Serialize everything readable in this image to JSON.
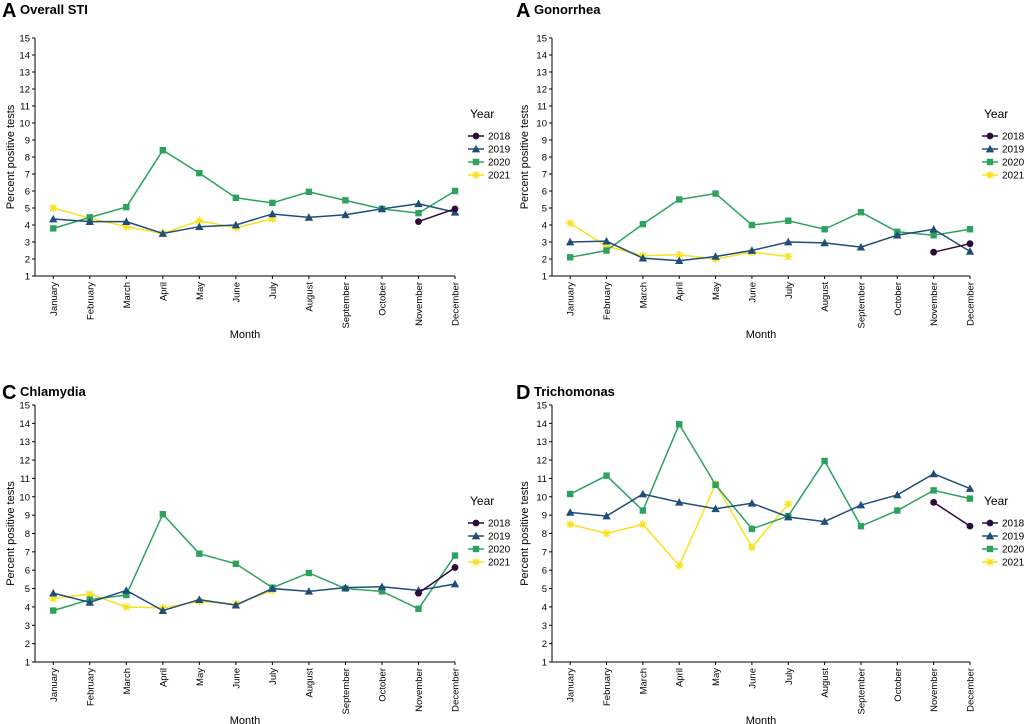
{
  "chart_data": [
    {
      "type": "line",
      "letter": "A",
      "title": "Overall STI",
      "xlabel": "Month",
      "ylabel": "Percent positive tests",
      "ylim": [
        1,
        15
      ],
      "yticks": [
        1,
        2,
        3,
        4,
        5,
        6,
        7,
        8,
        9,
        10,
        11,
        12,
        13,
        14,
        15
      ],
      "categories": [
        "January",
        "February",
        "March",
        "April",
        "May",
        "June",
        "July",
        "August",
        "September",
        "October",
        "November",
        "December"
      ],
      "legend_title": "Year",
      "series": [
        {
          "name": "2018",
          "values": [
            null,
            null,
            null,
            null,
            null,
            null,
            null,
            null,
            null,
            null,
            4.2,
            4.95
          ]
        },
        {
          "name": "2019",
          "values": [
            4.35,
            4.2,
            4.2,
            3.5,
            3.9,
            4.0,
            4.65,
            4.45,
            4.6,
            4.95,
            5.25,
            4.75
          ]
        },
        {
          "name": "2020",
          "values": [
            3.8,
            4.45,
            5.05,
            8.4,
            7.05,
            5.6,
            5.3,
            5.95,
            5.45,
            4.95,
            4.7,
            6.0
          ]
        },
        {
          "name": "2021",
          "values": [
            5.0,
            4.4,
            3.9,
            3.5,
            4.25,
            3.85,
            4.35,
            null,
            null,
            null,
            null,
            null
          ]
        }
      ]
    },
    {
      "type": "line",
      "letter": "A",
      "title": "Gonorrhea",
      "xlabel": "Month",
      "ylabel": "Percent positive tests",
      "ylim": [
        1,
        15
      ],
      "yticks": [
        1,
        2,
        3,
        4,
        5,
        6,
        7,
        8,
        9,
        10,
        11,
        12,
        13,
        14,
        15
      ],
      "categories": [
        "January",
        "February",
        "March",
        "April",
        "May",
        "June",
        "July",
        "August",
        "September",
        "October",
        "November",
        "December"
      ],
      "legend_title": "Year",
      "series": [
        {
          "name": "2018",
          "values": [
            null,
            null,
            null,
            null,
            null,
            null,
            null,
            null,
            null,
            null,
            2.4,
            2.9
          ]
        },
        {
          "name": "2019",
          "values": [
            3.0,
            3.05,
            2.05,
            1.9,
            2.15,
            2.5,
            3.0,
            2.95,
            2.7,
            3.4,
            3.75,
            2.45
          ]
        },
        {
          "name": "2020",
          "values": [
            2.1,
            2.5,
            4.05,
            5.5,
            5.85,
            4.0,
            4.25,
            3.75,
            4.75,
            3.6,
            3.4,
            3.75
          ]
        },
        {
          "name": "2021",
          "values": [
            4.1,
            2.75,
            2.2,
            2.25,
            2.0,
            2.4,
            2.15,
            null,
            null,
            null,
            null,
            null
          ]
        }
      ]
    },
    {
      "type": "line",
      "letter": "C",
      "title": "Chlamydia",
      "xlabel": "Month",
      "ylabel": "Percent positive tests",
      "ylim": [
        1,
        15
      ],
      "yticks": [
        1,
        2,
        3,
        4,
        5,
        6,
        7,
        8,
        9,
        10,
        11,
        12,
        13,
        14,
        15
      ],
      "categories": [
        "January",
        "February",
        "March",
        "April",
        "May",
        "June",
        "July",
        "August",
        "September",
        "October",
        "November",
        "December"
      ],
      "legend_title": "Year",
      "series": [
        {
          "name": "2018",
          "values": [
            null,
            null,
            null,
            null,
            null,
            null,
            null,
            null,
            null,
            null,
            4.75,
            6.15
          ]
        },
        {
          "name": "2019",
          "values": [
            4.75,
            4.25,
            4.9,
            3.8,
            4.4,
            4.1,
            5.0,
            4.85,
            5.05,
            5.1,
            4.9,
            5.25
          ]
        },
        {
          "name": "2020",
          "values": [
            3.8,
            4.4,
            4.65,
            9.05,
            6.9,
            6.35,
            5.05,
            5.85,
            5.0,
            4.85,
            3.9,
            6.8
          ]
        },
        {
          "name": "2021",
          "values": [
            4.45,
            4.7,
            4.0,
            3.95,
            4.3,
            4.15,
            4.9,
            null,
            null,
            null,
            null,
            null
          ]
        }
      ]
    },
    {
      "type": "line",
      "letter": "D",
      "title": "Trichomonas",
      "xlabel": "Month",
      "ylabel": "Percent positive tests",
      "ylim": [
        1,
        15
      ],
      "yticks": [
        1,
        2,
        3,
        4,
        5,
        6,
        7,
        8,
        9,
        10,
        11,
        12,
        13,
        14,
        15
      ],
      "categories": [
        "January",
        "February",
        "March",
        "April",
        "May",
        "June",
        "July",
        "August",
        "September",
        "October",
        "November",
        "December"
      ],
      "legend_title": "Year",
      "series": [
        {
          "name": "2018",
          "values": [
            null,
            null,
            null,
            null,
            null,
            null,
            null,
            null,
            null,
            null,
            9.7,
            8.4
          ]
        },
        {
          "name": "2019",
          "values": [
            9.15,
            8.95,
            10.15,
            9.7,
            9.35,
            9.65,
            8.9,
            8.65,
            9.55,
            10.1,
            11.25,
            10.45
          ]
        },
        {
          "name": "2020",
          "values": [
            10.15,
            11.15,
            9.25,
            13.95,
            10.65,
            8.25,
            8.95,
            11.95,
            8.4,
            9.25,
            10.35,
            9.9
          ]
        },
        {
          "name": "2021",
          "values": [
            8.5,
            8.0,
            8.5,
            6.25,
            10.7,
            7.25,
            9.6,
            null,
            null,
            null,
            null,
            null
          ]
        }
      ]
    }
  ],
  "series_colors": {
    "2018": "#2d0a3a",
    "2019": "#1f4e79",
    "2020": "#2ca25f",
    "2021": "#f6e21e"
  },
  "series_markers": {
    "2018": "circle",
    "2019": "triangle",
    "2020": "square",
    "2021": "asterisk"
  }
}
